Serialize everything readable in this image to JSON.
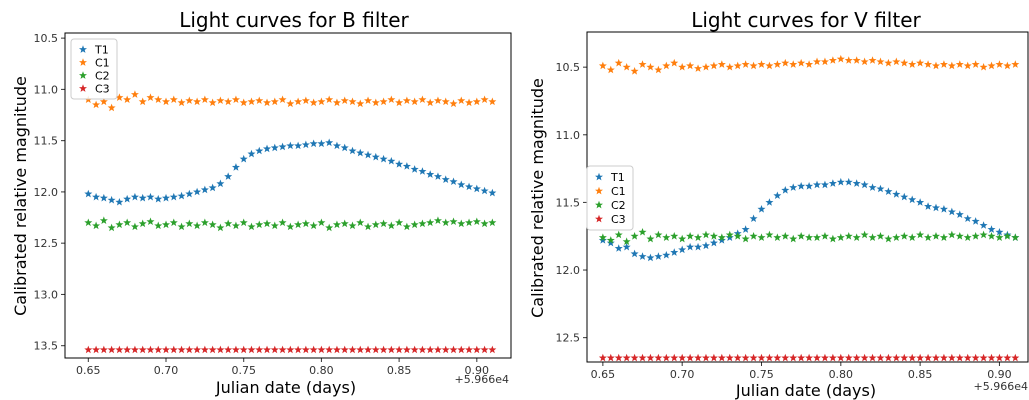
{
  "chart_data": [
    {
      "type": "scatter",
      "title": "Light curves for B filter",
      "xlabel": "Julian date (days)",
      "ylabel": "Calibrated relative magnitude",
      "offset_label": "+5.966e4",
      "xlim": [
        0.635,
        0.922
      ],
      "ylim": [
        13.62,
        10.45
      ],
      "yinverted": true,
      "xticks": [
        0.65,
        0.7,
        0.75,
        0.8,
        0.85,
        0.9
      ],
      "xtick_labels": [
        "0.65",
        "0.70",
        "0.75",
        "0.80",
        "0.85",
        "0.90"
      ],
      "yticks": [
        10.5,
        11.0,
        11.5,
        12.0,
        12.5,
        13.0,
        13.5
      ],
      "ytick_labels": [
        "10.5",
        "11.0",
        "11.5",
        "12.0",
        "12.5",
        "13.0",
        "13.5"
      ],
      "legend_position": "upper-left",
      "marker": "star",
      "series": [
        {
          "name": "T1",
          "color": "#1f77b4",
          "x": [
            0.65,
            0.655,
            0.66,
            0.665,
            0.67,
            0.675,
            0.68,
            0.685,
            0.69,
            0.695,
            0.7,
            0.705,
            0.71,
            0.715,
            0.72,
            0.725,
            0.73,
            0.735,
            0.74,
            0.745,
            0.75,
            0.755,
            0.76,
            0.765,
            0.77,
            0.775,
            0.78,
            0.785,
            0.79,
            0.795,
            0.8,
            0.805,
            0.81,
            0.815,
            0.82,
            0.825,
            0.83,
            0.835,
            0.84,
            0.845,
            0.85,
            0.855,
            0.86,
            0.865,
            0.87,
            0.875,
            0.88,
            0.885,
            0.89,
            0.895,
            0.9,
            0.905,
            0.91
          ],
          "y": [
            12.02,
            12.05,
            12.06,
            12.08,
            12.1,
            12.07,
            12.05,
            12.06,
            12.05,
            12.07,
            12.06,
            12.05,
            12.04,
            12.02,
            12.0,
            11.98,
            11.96,
            11.92,
            11.85,
            11.76,
            11.68,
            11.63,
            11.6,
            11.58,
            11.57,
            11.56,
            11.55,
            11.55,
            11.54,
            11.53,
            11.53,
            11.52,
            11.55,
            11.57,
            11.6,
            11.62,
            11.64,
            11.66,
            11.68,
            11.7,
            11.73,
            11.75,
            11.78,
            11.8,
            11.83,
            11.85,
            11.88,
            11.9,
            11.93,
            11.95,
            11.97,
            11.99,
            12.01
          ]
        },
        {
          "name": "C1",
          "color": "#ff7f0e",
          "x": [
            0.65,
            0.655,
            0.66,
            0.665,
            0.67,
            0.675,
            0.68,
            0.685,
            0.69,
            0.695,
            0.7,
            0.705,
            0.71,
            0.715,
            0.72,
            0.725,
            0.73,
            0.735,
            0.74,
            0.745,
            0.75,
            0.755,
            0.76,
            0.765,
            0.77,
            0.775,
            0.78,
            0.785,
            0.79,
            0.795,
            0.8,
            0.805,
            0.81,
            0.815,
            0.82,
            0.825,
            0.83,
            0.835,
            0.84,
            0.845,
            0.85,
            0.855,
            0.86,
            0.865,
            0.87,
            0.875,
            0.88,
            0.885,
            0.89,
            0.895,
            0.9,
            0.905,
            0.91
          ],
          "y": [
            11.1,
            11.15,
            11.12,
            11.18,
            11.08,
            11.1,
            11.05,
            11.12,
            11.08,
            11.1,
            11.12,
            11.1,
            11.13,
            11.11,
            11.12,
            11.1,
            11.13,
            11.11,
            11.12,
            11.1,
            11.13,
            11.12,
            11.11,
            11.13,
            11.12,
            11.1,
            11.14,
            11.12,
            11.11,
            11.13,
            11.12,
            11.1,
            11.13,
            11.11,
            11.12,
            11.14,
            11.11,
            11.13,
            11.12,
            11.1,
            11.13,
            11.11,
            11.12,
            11.1,
            11.13,
            11.11,
            11.12,
            11.14,
            11.11,
            11.13,
            11.12,
            11.1,
            11.12
          ]
        },
        {
          "name": "C2",
          "color": "#2ca02c",
          "x": [
            0.65,
            0.655,
            0.66,
            0.665,
            0.67,
            0.675,
            0.68,
            0.685,
            0.69,
            0.695,
            0.7,
            0.705,
            0.71,
            0.715,
            0.72,
            0.725,
            0.73,
            0.735,
            0.74,
            0.745,
            0.75,
            0.755,
            0.76,
            0.765,
            0.77,
            0.775,
            0.78,
            0.785,
            0.79,
            0.795,
            0.8,
            0.805,
            0.81,
            0.815,
            0.82,
            0.825,
            0.83,
            0.835,
            0.84,
            0.845,
            0.85,
            0.855,
            0.86,
            0.865,
            0.87,
            0.875,
            0.88,
            0.885,
            0.89,
            0.895,
            0.9,
            0.905,
            0.91
          ],
          "y": [
            12.3,
            12.33,
            12.28,
            12.35,
            12.32,
            12.3,
            12.34,
            12.31,
            12.29,
            12.33,
            12.32,
            12.3,
            12.34,
            12.31,
            12.33,
            12.3,
            12.32,
            12.35,
            12.31,
            12.33,
            12.3,
            12.34,
            12.32,
            12.31,
            12.33,
            12.3,
            12.34,
            12.32,
            12.31,
            12.33,
            12.3,
            12.35,
            12.32,
            12.31,
            12.33,
            12.3,
            12.34,
            12.32,
            12.31,
            12.33,
            12.3,
            12.34,
            12.32,
            12.31,
            12.3,
            12.28,
            12.3,
            12.29,
            12.31,
            12.3,
            12.29,
            12.31,
            12.3
          ]
        },
        {
          "name": "C3",
          "color": "#d62728",
          "x": [
            0.65,
            0.655,
            0.66,
            0.665,
            0.67,
            0.675,
            0.68,
            0.685,
            0.69,
            0.695,
            0.7,
            0.705,
            0.71,
            0.715,
            0.72,
            0.725,
            0.73,
            0.735,
            0.74,
            0.745,
            0.75,
            0.755,
            0.76,
            0.765,
            0.77,
            0.775,
            0.78,
            0.785,
            0.79,
            0.795,
            0.8,
            0.805,
            0.81,
            0.815,
            0.82,
            0.825,
            0.83,
            0.835,
            0.84,
            0.845,
            0.85,
            0.855,
            0.86,
            0.865,
            0.87,
            0.875,
            0.88,
            0.885,
            0.89,
            0.895,
            0.9,
            0.905,
            0.91
          ],
          "y": [
            13.54,
            13.54,
            13.54,
            13.54,
            13.54,
            13.54,
            13.54,
            13.54,
            13.54,
            13.54,
            13.54,
            13.54,
            13.54,
            13.54,
            13.54,
            13.54,
            13.54,
            13.54,
            13.54,
            13.54,
            13.54,
            13.54,
            13.54,
            13.54,
            13.54,
            13.54,
            13.54,
            13.54,
            13.54,
            13.54,
            13.54,
            13.54,
            13.54,
            13.54,
            13.54,
            13.54,
            13.54,
            13.54,
            13.54,
            13.54,
            13.54,
            13.54,
            13.54,
            13.54,
            13.54,
            13.54,
            13.54,
            13.54,
            13.54,
            13.54,
            13.54,
            13.54,
            13.54
          ]
        }
      ]
    },
    {
      "type": "scatter",
      "title": "Light curves for V filter",
      "xlabel": "Julian date (days)",
      "ylabel": "Calibrated relative magnitude",
      "offset_label": "+5.966e4",
      "xlim": [
        0.64,
        0.918
      ],
      "ylim": [
        12.68,
        10.24
      ],
      "yinverted": true,
      "xticks": [
        0.65,
        0.7,
        0.75,
        0.8,
        0.85,
        0.9
      ],
      "xtick_labels": [
        "0.65",
        "0.70",
        "0.75",
        "0.80",
        "0.85",
        "0.90"
      ],
      "yticks": [
        10.5,
        11.0,
        11.5,
        12.0,
        12.5
      ],
      "ytick_labels": [
        "10.5",
        "11.0",
        "11.5",
        "12.0",
        "12.5"
      ],
      "legend_position": "center-left",
      "marker": "star",
      "series": [
        {
          "name": "T1",
          "color": "#1f77b4",
          "x": [
            0.65,
            0.655,
            0.66,
            0.665,
            0.67,
            0.675,
            0.68,
            0.685,
            0.69,
            0.695,
            0.7,
            0.705,
            0.71,
            0.715,
            0.72,
            0.725,
            0.73,
            0.735,
            0.74,
            0.745,
            0.75,
            0.755,
            0.76,
            0.765,
            0.77,
            0.775,
            0.78,
            0.785,
            0.79,
            0.795,
            0.8,
            0.805,
            0.81,
            0.815,
            0.82,
            0.825,
            0.83,
            0.835,
            0.84,
            0.845,
            0.85,
            0.855,
            0.86,
            0.865,
            0.87,
            0.875,
            0.88,
            0.885,
            0.89,
            0.895,
            0.9,
            0.905,
            0.91
          ],
          "y": [
            11.78,
            11.8,
            11.84,
            11.83,
            11.88,
            11.9,
            11.91,
            11.9,
            11.89,
            11.87,
            11.85,
            11.83,
            11.83,
            11.82,
            11.8,
            11.78,
            11.76,
            11.73,
            11.7,
            11.62,
            11.55,
            11.5,
            11.45,
            11.41,
            11.39,
            11.38,
            11.38,
            11.37,
            11.37,
            11.36,
            11.35,
            11.35,
            11.36,
            11.37,
            11.39,
            11.4,
            11.42,
            11.44,
            11.46,
            11.48,
            11.5,
            11.53,
            11.54,
            11.55,
            11.57,
            11.59,
            11.62,
            11.64,
            11.67,
            11.7,
            11.72,
            11.74,
            11.76
          ]
        },
        {
          "name": "C1",
          "color": "#ff7f0e",
          "x": [
            0.65,
            0.655,
            0.66,
            0.665,
            0.67,
            0.675,
            0.68,
            0.685,
            0.69,
            0.695,
            0.7,
            0.705,
            0.71,
            0.715,
            0.72,
            0.725,
            0.73,
            0.735,
            0.74,
            0.745,
            0.75,
            0.755,
            0.76,
            0.765,
            0.77,
            0.775,
            0.78,
            0.785,
            0.79,
            0.795,
            0.8,
            0.805,
            0.81,
            0.815,
            0.82,
            0.825,
            0.83,
            0.835,
            0.84,
            0.845,
            0.85,
            0.855,
            0.86,
            0.865,
            0.87,
            0.875,
            0.88,
            0.885,
            0.89,
            0.895,
            0.9,
            0.905,
            0.91
          ],
          "y": [
            10.49,
            10.52,
            10.47,
            10.5,
            10.53,
            10.48,
            10.5,
            10.52,
            10.49,
            10.47,
            10.5,
            10.49,
            10.51,
            10.5,
            10.49,
            10.48,
            10.5,
            10.49,
            10.48,
            10.49,
            10.48,
            10.49,
            10.48,
            10.47,
            10.48,
            10.47,
            10.48,
            10.46,
            10.46,
            10.45,
            10.44,
            10.45,
            10.45,
            10.46,
            10.45,
            10.46,
            10.47,
            10.46,
            10.47,
            10.48,
            10.47,
            10.48,
            10.49,
            10.48,
            10.49,
            10.48,
            10.49,
            10.48,
            10.5,
            10.49,
            10.48,
            10.49,
            10.48
          ]
        },
        {
          "name": "C2",
          "color": "#2ca02c",
          "x": [
            0.65,
            0.655,
            0.66,
            0.665,
            0.67,
            0.675,
            0.68,
            0.685,
            0.69,
            0.695,
            0.7,
            0.705,
            0.71,
            0.715,
            0.72,
            0.725,
            0.73,
            0.735,
            0.74,
            0.745,
            0.75,
            0.755,
            0.76,
            0.765,
            0.77,
            0.775,
            0.78,
            0.785,
            0.79,
            0.795,
            0.8,
            0.805,
            0.81,
            0.815,
            0.82,
            0.825,
            0.83,
            0.835,
            0.84,
            0.845,
            0.85,
            0.855,
            0.86,
            0.865,
            0.87,
            0.875,
            0.88,
            0.885,
            0.89,
            0.895,
            0.9,
            0.905,
            0.91
          ],
          "y": [
            11.76,
            11.78,
            11.74,
            11.79,
            11.75,
            11.72,
            11.77,
            11.74,
            11.76,
            11.75,
            11.77,
            11.75,
            11.76,
            11.74,
            11.75,
            11.76,
            11.74,
            11.75,
            11.77,
            11.75,
            11.76,
            11.74,
            11.76,
            11.75,
            11.77,
            11.75,
            11.76,
            11.76,
            11.75,
            11.77,
            11.76,
            11.75,
            11.76,
            11.74,
            11.76,
            11.75,
            11.77,
            11.76,
            11.75,
            11.76,
            11.74,
            11.76,
            11.75,
            11.76,
            11.74,
            11.75,
            11.76,
            11.75,
            11.74,
            11.75,
            11.76,
            11.75,
            11.76
          ]
        },
        {
          "name": "C3",
          "color": "#d62728",
          "x": [
            0.65,
            0.655,
            0.66,
            0.665,
            0.67,
            0.675,
            0.68,
            0.685,
            0.69,
            0.695,
            0.7,
            0.705,
            0.71,
            0.715,
            0.72,
            0.725,
            0.73,
            0.735,
            0.74,
            0.745,
            0.75,
            0.755,
            0.76,
            0.765,
            0.77,
            0.775,
            0.78,
            0.785,
            0.79,
            0.795,
            0.8,
            0.805,
            0.81,
            0.815,
            0.82,
            0.825,
            0.83,
            0.835,
            0.84,
            0.845,
            0.85,
            0.855,
            0.86,
            0.865,
            0.87,
            0.875,
            0.88,
            0.885,
            0.89,
            0.895,
            0.9,
            0.905,
            0.91
          ],
          "y": [
            12.65,
            12.65,
            12.65,
            12.65,
            12.65,
            12.65,
            12.65,
            12.65,
            12.65,
            12.65,
            12.65,
            12.65,
            12.65,
            12.65,
            12.65,
            12.65,
            12.65,
            12.65,
            12.65,
            12.65,
            12.65,
            12.65,
            12.65,
            12.65,
            12.65,
            12.65,
            12.65,
            12.65,
            12.65,
            12.65,
            12.65,
            12.65,
            12.65,
            12.65,
            12.65,
            12.65,
            12.65,
            12.65,
            12.65,
            12.65,
            12.65,
            12.65,
            12.65,
            12.65,
            12.65,
            12.65,
            12.65,
            12.65,
            12.65,
            12.65,
            12.65,
            12.65,
            12.65
          ]
        }
      ]
    }
  ]
}
